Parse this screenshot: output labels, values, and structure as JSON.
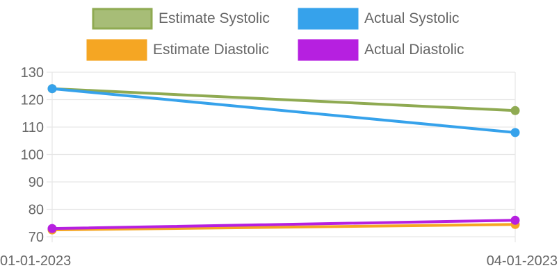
{
  "chart_data": {
    "type": "line",
    "categories": [
      "01-01-2023",
      "04-01-2023"
    ],
    "ylim": [
      70,
      130
    ],
    "yticks": [
      130,
      120,
      110,
      100,
      90,
      80,
      70
    ],
    "grid": true,
    "legend_placement": "top",
    "series": [
      {
        "name": "Estimate Systolic",
        "values": [
          124,
          116
        ],
        "color": "#8faa52",
        "fill": "#a7bd77"
      },
      {
        "name": "Actual Systolic",
        "values": [
          124,
          108
        ],
        "color": "#36a2eb",
        "fill": "#36a2eb"
      },
      {
        "name": "Estimate Diastolic",
        "values": [
          72.5,
          74.5
        ],
        "color": "#f5a623",
        "fill": "#f5a623"
      },
      {
        "name": "Actual Diastolic",
        "values": [
          73,
          76
        ],
        "color": "#b620e0",
        "fill": "#b620e0"
      }
    ]
  }
}
